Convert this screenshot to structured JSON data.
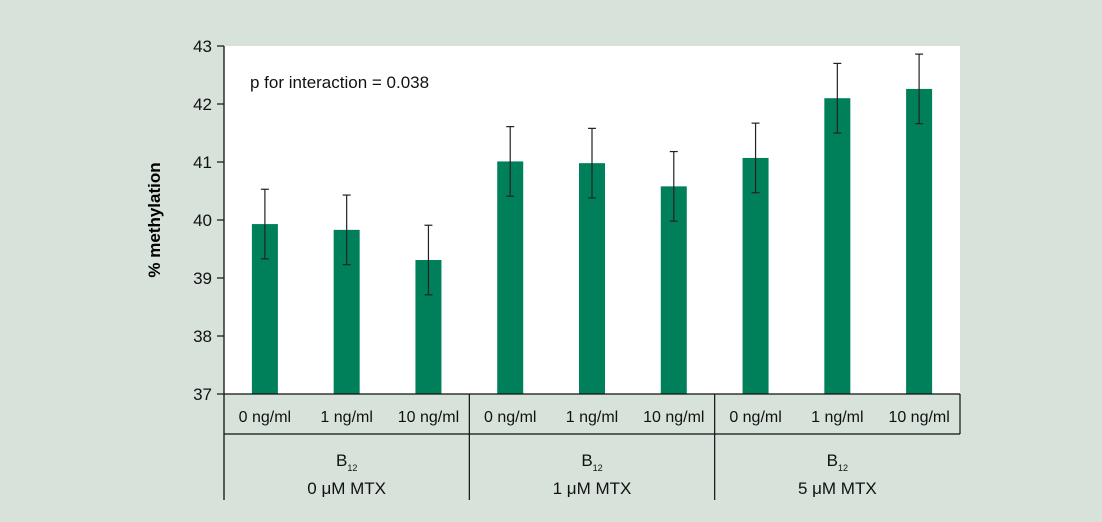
{
  "chart_data": {
    "type": "bar",
    "ylabel": "% methylation",
    "ylim": [
      37,
      43
    ],
    "yticks": [
      37,
      38,
      39,
      40,
      41,
      42,
      43
    ],
    "annotation": "p for interaction = 0.038",
    "grid": false,
    "legend": "none",
    "bar_color": "#00805a",
    "categories": [
      "0 ng/ml",
      "1 ng/ml",
      "10 ng/ml",
      "0 ng/ml",
      "1 ng/ml",
      "10 ng/ml",
      "0 ng/ml",
      "1 ng/ml",
      "10 ng/ml"
    ],
    "values": [
      39.93,
      39.83,
      39.31,
      41.01,
      40.98,
      40.58,
      41.07,
      42.1,
      42.26
    ],
    "error": [
      0.6,
      0.6,
      0.6,
      0.6,
      0.6,
      0.6,
      0.6,
      0.6,
      0.6
    ],
    "groups": [
      {
        "label_main": "B",
        "label_sub": "12",
        "mtx": "0 μM MTX"
      },
      {
        "label_main": "B",
        "label_sub": "12",
        "mtx": "1 μM MTX"
      },
      {
        "label_main": "B",
        "label_sub": "12",
        "mtx": "5 μM MTX"
      }
    ]
  }
}
